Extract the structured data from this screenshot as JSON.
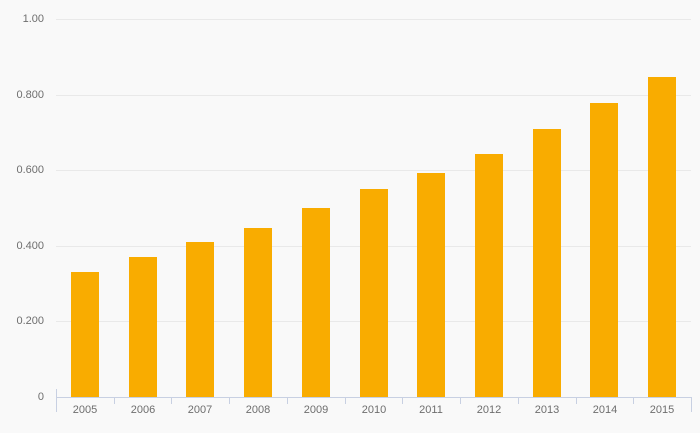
{
  "chart_data": {
    "type": "bar",
    "title": "",
    "xlabel": "",
    "ylabel": "",
    "categories": [
      "2005",
      "2006",
      "2007",
      "2008",
      "2009",
      "2010",
      "2011",
      "2012",
      "2013",
      "2014",
      "2015"
    ],
    "values": [
      0.33,
      0.371,
      0.409,
      0.448,
      0.499,
      0.551,
      0.592,
      0.644,
      0.708,
      0.777,
      0.846
    ],
    "ylim": [
      0,
      1.0
    ],
    "y_ticks": [
      {
        "value": 1.0,
        "label": "1.00"
      },
      {
        "value": 0.8,
        "label": "0.800"
      },
      {
        "value": 0.6,
        "label": "0.600"
      },
      {
        "value": 0.4,
        "label": "0.400"
      },
      {
        "value": 0.2,
        "label": "0.200"
      },
      {
        "value": 0.0,
        "label": "0"
      }
    ],
    "grid": true,
    "legend": false
  },
  "colors": {
    "background": "#f9f9f9",
    "bar": "#f9ac00",
    "gridline": "#e9e9e9",
    "axis": "#c8d0e2",
    "label": "#6e6e6e"
  }
}
